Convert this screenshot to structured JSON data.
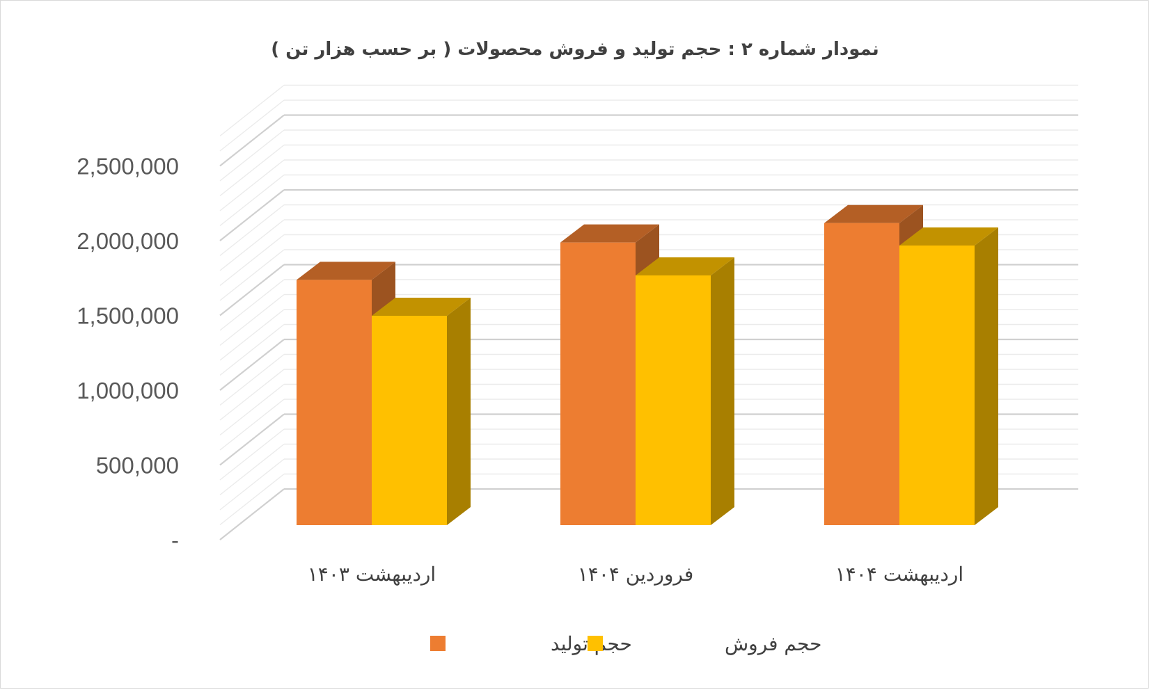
{
  "chart_data": {
    "type": "bar",
    "title": "نمودار شماره ۲ : حجم  تولید و فروش محصولات ( بر حسب هزار تن )",
    "categories": [
      "اردیبهشت ۱۴۰۳",
      "فروردین ۱۴۰۴",
      "اردیبهشت ۱۴۰۴"
    ],
    "series": [
      {
        "name": "حجم تولید",
        "values": [
          1640000,
          1890000,
          2020000
        ],
        "color": "#ED7D31"
      },
      {
        "name": "حجم فروش",
        "values": [
          1400000,
          1670000,
          1870000
        ],
        "color": "#FFC000"
      }
    ],
    "y_ticks": [
      {
        "value": 0,
        "label": "-"
      },
      {
        "value": 500000,
        "label": "500,000"
      },
      {
        "value": 1000000,
        "label": "1,000,000"
      },
      {
        "value": 1500000,
        "label": "1,500,000"
      },
      {
        "value": 2000000,
        "label": "2,000,000"
      },
      {
        "value": 2500000,
        "label": "2,500,000"
      }
    ],
    "ylim": [
      0,
      2750000
    ],
    "style": "3d-clustered-column",
    "grid": true,
    "legend_position": "bottom"
  }
}
